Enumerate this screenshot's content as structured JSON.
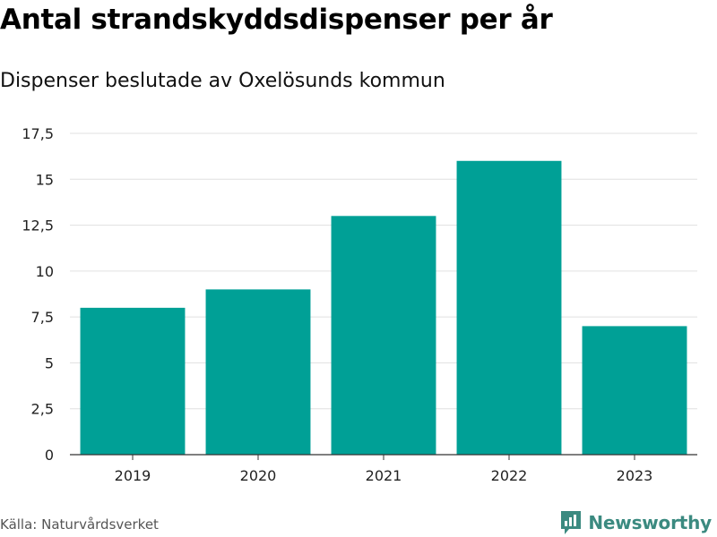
{
  "title": "Antal strandskyddsdispenser per år",
  "subtitle": "Dispenser beslutade av Oxelösunds kommun",
  "source": "Källa: Naturvårdsverket",
  "brand": "Newsworthy",
  "colors": {
    "bar": "#00a096",
    "grid": "#e0e0e0",
    "axis": "#333333",
    "brand": "#3b8a80"
  },
  "chart_data": {
    "type": "bar",
    "title": "Antal strandskyddsdispenser per år",
    "subtitle": "Dispenser beslutade av Oxelösunds kommun",
    "xlabel": "",
    "ylabel": "",
    "categories": [
      "2019",
      "2020",
      "2021",
      "2022",
      "2023"
    ],
    "values": [
      8,
      9,
      13,
      16,
      7
    ],
    "ylim": [
      0,
      17.5
    ],
    "yticks": [
      0,
      2.5,
      5,
      7.5,
      10,
      12.5,
      15,
      17.5
    ],
    "ytick_labels": [
      "0",
      "2,5",
      "5",
      "7,5",
      "10",
      "12,5",
      "15",
      "17,5"
    ],
    "grid": true,
    "legend": "none"
  }
}
